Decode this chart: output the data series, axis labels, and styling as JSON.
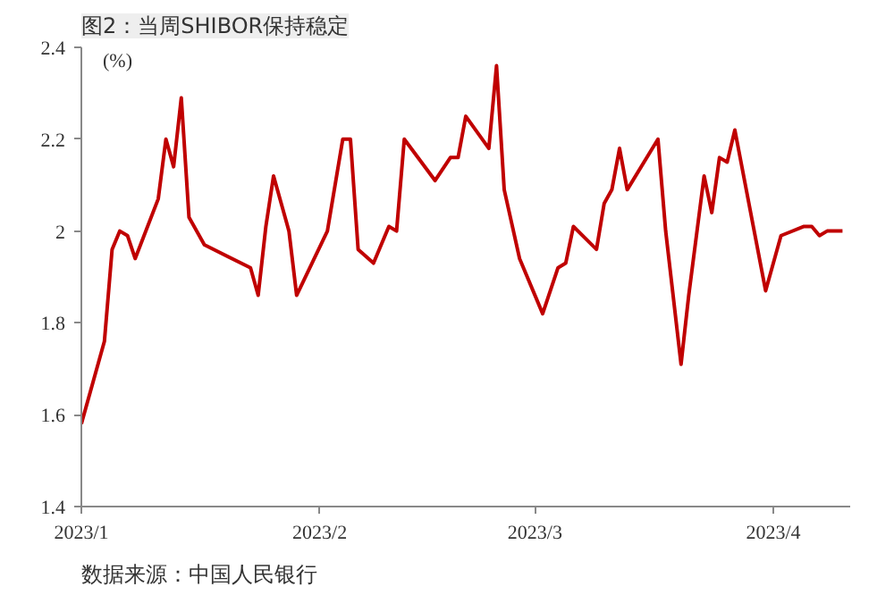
{
  "chart_data": {
    "type": "line",
    "title": "图2：当周SHIBOR保持稳定",
    "ylabel": "(%)",
    "annotations": [
      "数据来源：中国人民银行"
    ],
    "x": [
      "2023-01-01",
      "2023-01-04",
      "2023-01-05",
      "2023-01-06",
      "2023-01-07",
      "2023-01-08",
      "2023-01-11",
      "2023-01-12",
      "2023-01-13",
      "2023-01-14",
      "2023-01-15",
      "2023-01-17",
      "2023-01-23",
      "2023-01-24",
      "2023-01-25",
      "2023-01-26",
      "2023-01-28",
      "2023-01-29",
      "2023-02-02",
      "2023-02-04",
      "2023-02-05",
      "2023-02-06",
      "2023-02-08",
      "2023-02-10",
      "2023-02-11",
      "2023-02-12",
      "2023-02-16",
      "2023-02-18",
      "2023-02-19",
      "2023-02-20",
      "2023-02-23",
      "2023-02-24",
      "2023-02-25",
      "2023-02-27",
      "2023-03-02",
      "2023-03-04",
      "2023-03-05",
      "2023-03-06",
      "2023-03-09",
      "2023-03-10",
      "2023-03-11",
      "2023-03-12",
      "2023-03-13",
      "2023-03-17",
      "2023-03-18",
      "2023-03-20",
      "2023-03-21",
      "2023-03-23",
      "2023-03-24",
      "2023-03-25",
      "2023-03-26",
      "2023-03-27",
      "2023-03-31",
      "2023-04-02",
      "2023-04-05",
      "2023-04-06",
      "2023-04-07",
      "2023-04-08",
      "2023-04-10"
    ],
    "series": [
      {
        "color": "#c00000",
        "values": [
          1.58,
          1.76,
          1.96,
          2.0,
          1.99,
          1.94,
          2.07,
          2.2,
          2.14,
          2.29,
          2.03,
          1.97,
          1.92,
          1.86,
          2.01,
          2.12,
          2.0,
          1.86,
          2.0,
          2.2,
          2.2,
          1.96,
          1.93,
          2.01,
          2.0,
          2.2,
          2.11,
          2.16,
          2.16,
          2.25,
          2.18,
          2.36,
          2.09,
          1.94,
          1.82,
          1.92,
          1.93,
          2.01,
          1.96,
          2.06,
          2.09,
          2.18,
          2.09,
          2.2,
          2.0,
          1.71,
          1.86,
          2.12,
          2.04,
          2.16,
          2.15,
          2.22,
          1.87,
          1.99,
          2.01,
          2.01,
          1.99,
          2.0,
          2.0
        ]
      }
    ],
    "xlim": [
      "2023-01-01",
      "2023-04-11"
    ],
    "xticks": [
      {
        "value": "2023-01-01",
        "label": "2023/1"
      },
      {
        "value": "2023-02-01",
        "label": "2023/2"
      },
      {
        "value": "2023-03-01",
        "label": "2023/3"
      },
      {
        "value": "2023-04-01",
        "label": "2023/4"
      }
    ],
    "ylim": [
      1.4,
      2.4
    ],
    "yticks": [
      1.4,
      1.6,
      1.8,
      2,
      2.2,
      2.4
    ],
    "grid": false,
    "marker": "none",
    "line_style": "solid"
  }
}
